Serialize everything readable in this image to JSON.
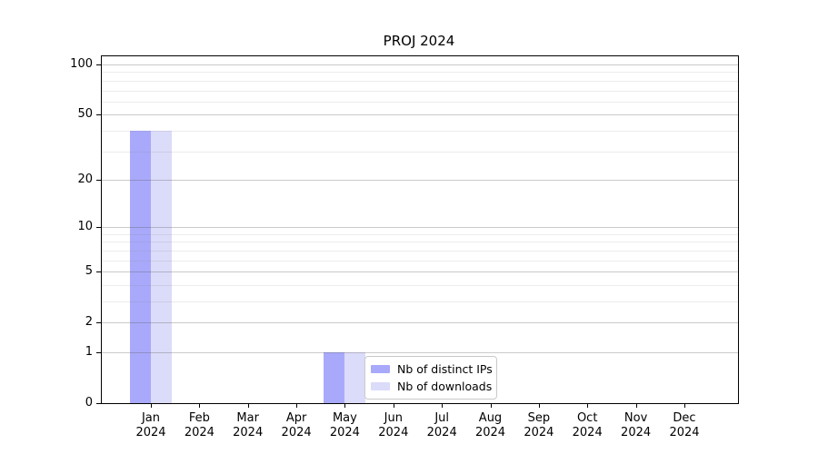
{
  "figure": {
    "background": "#ffffff"
  },
  "chart_data": {
    "type": "bar",
    "title": "PROJ 2024",
    "categories": [
      "Jan 2024",
      "Feb 2024",
      "Mar 2024",
      "Apr 2024",
      "May 2024",
      "Jun 2024",
      "Jul 2024",
      "Aug 2024",
      "Sep 2024",
      "Oct 2024",
      "Nov 2024",
      "Dec 2024"
    ],
    "series": [
      {
        "name": "Nb of distinct IPs",
        "color": "#a9a9fb",
        "values": [
          40,
          0,
          0,
          0,
          1,
          0,
          0,
          0,
          0,
          0,
          0,
          0
        ]
      },
      {
        "name": "Nb of downloads",
        "color": "#dbdbfa",
        "values": [
          40,
          0,
          0,
          0,
          1,
          0,
          0,
          0,
          0,
          0,
          0,
          0
        ]
      }
    ],
    "xlabel": "",
    "ylabel": "",
    "yscale": "log1p",
    "yticks": [
      0,
      1,
      2,
      5,
      10,
      20,
      50,
      100
    ],
    "minor_gridlines": [
      3,
      4,
      6,
      7,
      8,
      9,
      30,
      40,
      60,
      70,
      80,
      90
    ],
    "ylim": [
      0,
      112
    ],
    "grid": "horizontal",
    "legend_position": "lower-center-inside"
  }
}
